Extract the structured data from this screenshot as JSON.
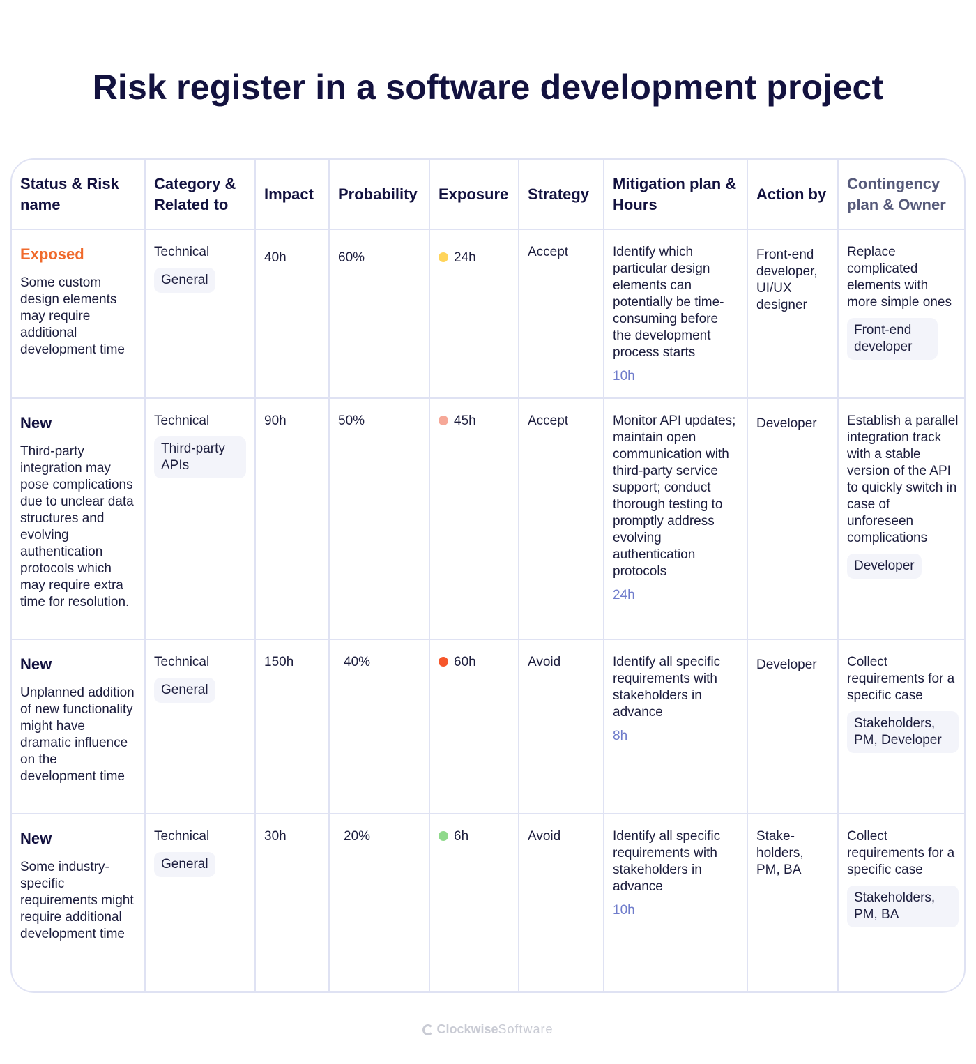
{
  "title": "Risk register in a software development project",
  "headers": {
    "status_risk": "Status & Risk name",
    "category": "Category & Related to",
    "impact": "Impact",
    "probability": "Probability",
    "exposure": "Exposure",
    "strategy": "Strategy",
    "mitigation": "Mitigation plan & Hours",
    "action_by": "Action by",
    "contingency": "Contingency plan & Owner"
  },
  "colors": {
    "exposed_status": "#f06a2c",
    "dot_yellow": "#ffd45a",
    "dot_salmon": "#f6a898",
    "dot_orange": "#f6562a",
    "dot_green": "#8fd98b",
    "hours_blue": "#6f7ccb"
  },
  "rows": [
    {
      "status": "Exposed",
      "risk": "Some custom design elements may require additional development time",
      "category": "Technical",
      "related": "General",
      "impact": "40h",
      "probability": "60%",
      "exposure": "24h",
      "exposure_dot": "yellow",
      "strategy": "Accept",
      "mitigation": "Identify which particular design elements can potentially be time-consuming before the development process starts",
      "mitigation_hours": "10h",
      "action_by": "Front-end developer, UI/UX designer",
      "contingency": "Replace complicated elements with more simple ones",
      "owner": "Front-end developer"
    },
    {
      "status": "New",
      "risk": "Third-party integration may pose complications due to unclear data structures and evolving authentication protocols which may require extra time for resolution.",
      "category": "Technical",
      "related": "Third-party APIs",
      "impact": "90h",
      "probability": "50%",
      "exposure": "45h",
      "exposure_dot": "salmon",
      "strategy": "Accept",
      "mitigation": "Monitor API updates; maintain open communication with third-party service support; conduct thorough testing to promptly address evolving authentication protocols",
      "mitigation_hours": "24h",
      "action_by": "Developer",
      "contingency": "Establish a parallel integration track with a stable version of the API to quickly switch in case of unforeseen complications",
      "owner": "Developer"
    },
    {
      "status": "New",
      "risk": "Unplanned addition of new functionality might have dramatic influence on the development time",
      "category": "Technical",
      "related": "General",
      "impact": "150h",
      "probability": "40%",
      "exposure": "60h",
      "exposure_dot": "orange",
      "strategy": "Avoid",
      "mitigation": "Identify all specific requirements with stakeholders in advance",
      "mitigation_hours": "8h",
      "action_by": "Developer",
      "contingency": "Collect requirements for a specific case",
      "owner": "Stakeholders, PM, Developer"
    },
    {
      "status": "New",
      "risk": "Some industry-specific requirements might require additional development time",
      "category": "Technical",
      "related": "General",
      "impact": "30h",
      "probability": "20%",
      "exposure": "6h",
      "exposure_dot": "green",
      "strategy": "Avoid",
      "mitigation": "Identify all specific requirements with stakeholders in advance",
      "mitigation_hours": "10h",
      "action_by": "Stake-holders, PM, BA",
      "contingency": "Collect requirements for a specific case",
      "owner": "Stakeholders, PM, BA"
    }
  ],
  "footer": {
    "brand_bold": "Clockwise",
    "brand_light": "Software"
  }
}
